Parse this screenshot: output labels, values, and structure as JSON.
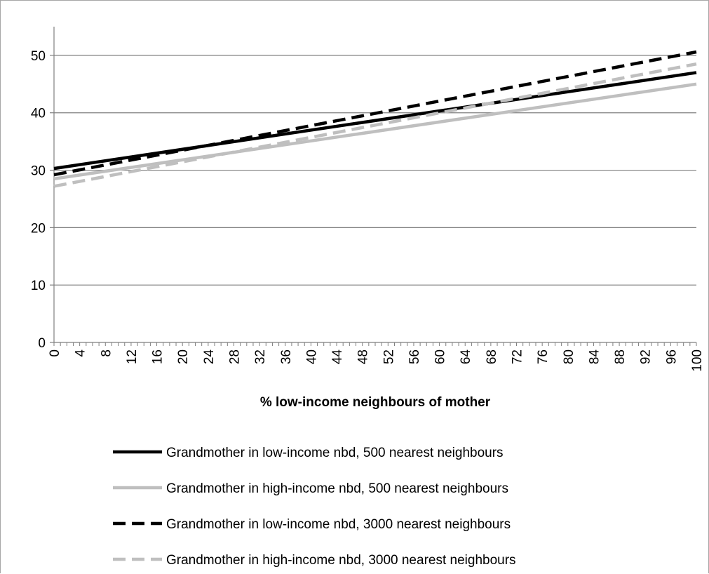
{
  "chart_data": {
    "type": "line",
    "xlabel": "% low-income neighbours of mother",
    "ylabel": "",
    "xlim": [
      0,
      100
    ],
    "ylim": [
      0,
      55
    ],
    "y_ticks": [
      0,
      10,
      20,
      30,
      40,
      50
    ],
    "x_tick_labels": [
      0,
      4,
      8,
      12,
      16,
      20,
      24,
      28,
      32,
      36,
      40,
      44,
      48,
      52,
      56,
      60,
      64,
      68,
      72,
      76,
      80,
      84,
      88,
      92,
      96,
      100
    ],
    "grid": "horizontal major gridlines",
    "legend_position": "bottom",
    "series": [
      {
        "name": "Grandmother in low-income nbd, 500 nearest neighbours",
        "x": [
          0,
          100
        ],
        "values": [
          30.3,
          47.0
        ],
        "color": "#000000",
        "style": "solid"
      },
      {
        "name": "Grandmother in high-income nbd, 500 nearest neighbours",
        "x": [
          0,
          100
        ],
        "values": [
          28.5,
          45.0
        ],
        "color": "#bfbfbf",
        "style": "solid"
      },
      {
        "name": "Grandmother in low-income nbd, 3000 nearest neighbours",
        "x": [
          0,
          100
        ],
        "values": [
          29.2,
          50.6
        ],
        "color": "#000000",
        "style": "dashed"
      },
      {
        "name": "Grandmother in high-income nbd, 3000 nearest neighbours",
        "x": [
          0,
          100
        ],
        "values": [
          27.2,
          48.5
        ],
        "color": "#bfbfbf",
        "style": "dashed"
      }
    ]
  }
}
